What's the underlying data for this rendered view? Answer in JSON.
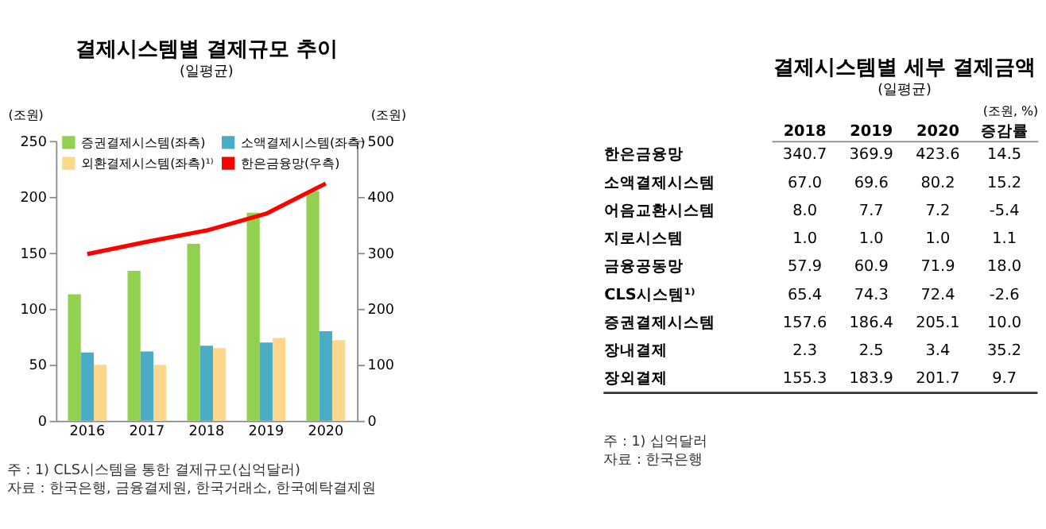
{
  "chart_data": [
    {
      "type": "bar",
      "title": "결제시스템별 결제규모 추이",
      "subtitle": "(일평균)",
      "ylabel": "(조원)",
      "y2label": "(조원)",
      "categories": [
        "2016",
        "2017",
        "2018",
        "2019",
        "2020"
      ],
      "series": [
        {
          "name": "증권결제시스템(좌측)",
          "color": "#92d050",
          "values": [
            113,
            134,
            158,
            186,
            205
          ]
        },
        {
          "name": "소액결제시스템(좌측)",
          "color": "#4bacc6",
          "values": [
            61,
            62,
            67,
            70,
            80
          ]
        },
        {
          "name": "외환결제시스템(좌측)¹⁾",
          "color": "#ffd78c",
          "values": [
            50,
            50,
            65,
            74,
            72
          ]
        },
        {
          "name": "한은금융망(우측)",
          "color": "#ff0000",
          "type": "line",
          "axis": "y2",
          "values": [
            298,
            320,
            340,
            370,
            424
          ]
        }
      ],
      "ylim": [
        0,
        250
      ],
      "yticks": [
        0,
        50,
        100,
        150,
        200,
        250
      ],
      "y2lim": [
        0,
        500
      ],
      "y2ticks": [
        0,
        100,
        200,
        300,
        400,
        500
      ],
      "grid": false,
      "legend": "top",
      "marker": "none",
      "line_style": "solid",
      "annotations": [
        "주 : 1) CLS시스템을 통한 결제규모(십억달러)",
        "자료 : 한국은행, 금융결제원, 한국거래소, 한국예탁결제원"
      ]
    },
    {
      "type": "heatmap",
      "data_labels": true,
      "title": "결제시스템별 세부 결제금액",
      "subtitle": "(일평균)",
      "xlabel": "(조원, %)",
      "categories": [
        "2018",
        "2019",
        "2020",
        "증감률"
      ],
      "y_categories": [
        "한은금융망",
        "소액결제시스템",
        "어음교환시스템",
        "지로시스템",
        "금융공동망",
        "CLS시스템¹⁾",
        "증권결제시스템",
        "장내결제",
        "장외결제"
      ],
      "cells": [
        [
          340.7,
          369.9,
          423.6,
          14.5
        ],
        [
          67.0,
          69.6,
          80.2,
          15.2
        ],
        [
          8.0,
          7.7,
          7.2,
          -5.4
        ],
        [
          1.0,
          1.0,
          1.0,
          1.1
        ],
        [
          57.9,
          60.9,
          71.9,
          18.0
        ],
        [
          65.4,
          74.3,
          72.4,
          -2.6
        ],
        [
          157.6,
          186.4,
          205.1,
          10.0
        ],
        [
          2.3,
          2.5,
          3.4,
          35.2
        ],
        [
          155.3,
          183.9,
          201.7,
          9.7
        ]
      ],
      "cell_labels": [
        [
          "340.7",
          "369.9",
          "423.6",
          "14.5"
        ],
        [
          "67.0",
          "69.6",
          "80.2",
          "15.2"
        ],
        [
          "8.0",
          "7.7",
          "7.2",
          "-5.4"
        ],
        [
          "1.0",
          "1.0",
          "1.0",
          "1.1"
        ],
        [
          "57.9",
          "60.9",
          "71.9",
          "18.0"
        ],
        [
          "65.4",
          "74.3",
          "72.4",
          "-2.6"
        ],
        [
          "157.6",
          "186.4",
          "205.1",
          "10.0"
        ],
        [
          "2.3",
          "2.5",
          "3.4",
          "35.2"
        ],
        [
          "155.3",
          "183.9",
          "201.7",
          "9.7"
        ]
      ],
      "annotations": [
        "주 : 1) 십억달러",
        "자료 : 한국은행"
      ]
    }
  ]
}
